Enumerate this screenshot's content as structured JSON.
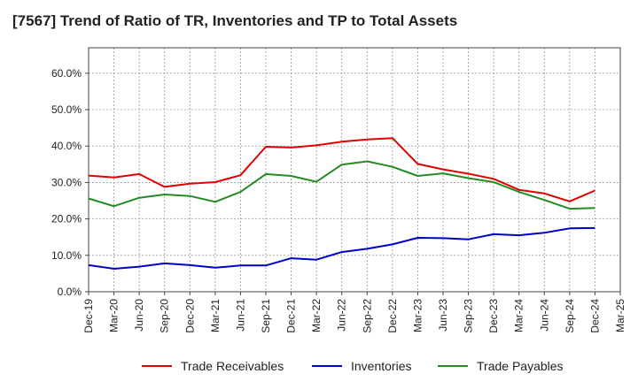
{
  "chart_data": {
    "type": "line",
    "title": "[7567]  Trend of Ratio of TR, Inventories and TP to Total Assets",
    "x": [
      "Dec-19",
      "Mar-20",
      "Jun-20",
      "Sep-20",
      "Dec-20",
      "Mar-21",
      "Jun-21",
      "Sep-21",
      "Dec-21",
      "Mar-22",
      "Jun-22",
      "Sep-22",
      "Dec-22",
      "Mar-23",
      "Jun-23",
      "Sep-23",
      "Dec-23",
      "Mar-24",
      "Jun-24",
      "Sep-24",
      "Dec-24",
      "Mar-25"
    ],
    "y_ticks": [
      "0.0%",
      "10.0%",
      "20.0%",
      "30.0%",
      "40.0%",
      "50.0%",
      "60.0%"
    ],
    "ylim": [
      0,
      67
    ],
    "grid": true,
    "legend_position": "bottom",
    "series": [
      {
        "name": "Trade Receivables",
        "color": "#e00000",
        "values": [
          31.9,
          31.4,
          32.3,
          28.8,
          29.7,
          30.1,
          32.0,
          39.8,
          39.6,
          40.2,
          41.2,
          41.8,
          42.2,
          35.1,
          33.6,
          32.4,
          31.0,
          28.0,
          27.0,
          24.8,
          27.8,
          null
        ]
      },
      {
        "name": "Inventories",
        "color": "#0000cc",
        "values": [
          7.3,
          6.3,
          6.9,
          7.8,
          7.3,
          6.6,
          7.2,
          7.2,
          9.2,
          8.8,
          10.9,
          11.8,
          13.0,
          14.8,
          14.7,
          14.4,
          15.8,
          15.5,
          16.2,
          17.4,
          17.5,
          null
        ]
      },
      {
        "name": "Trade Payables",
        "color": "#228b22",
        "values": [
          25.6,
          23.5,
          25.8,
          26.7,
          26.3,
          24.7,
          27.4,
          32.3,
          31.8,
          30.2,
          34.9,
          35.8,
          34.3,
          31.8,
          32.5,
          31.2,
          30.1,
          27.4,
          25.2,
          22.8,
          23.0,
          null
        ]
      }
    ]
  }
}
